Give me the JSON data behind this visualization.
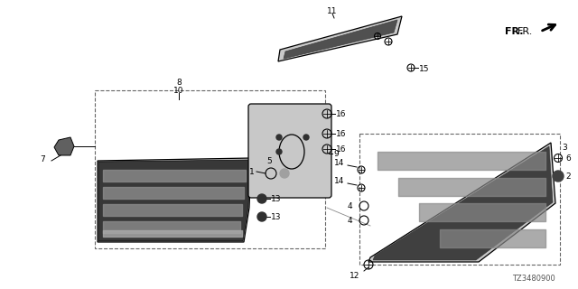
{
  "bg_color": "#ffffff",
  "line_color": "#000000",
  "diagram_code": "TZ3480900",
  "fr_text": "FR.",
  "gray_light": "#c8c8c8",
  "gray_mid": "#909090",
  "gray_dark": "#505050",
  "gray_led": "#707070",
  "dashed_color": "#666666"
}
